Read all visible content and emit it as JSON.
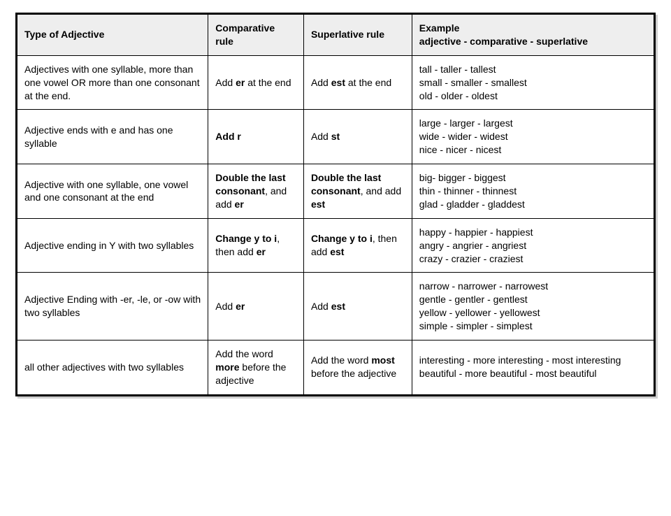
{
  "table": {
    "background_color": "#ffffff",
    "header_bg": "#eeeeee",
    "border_color": "#000000",
    "font_family": "Arial",
    "cell_fontsize": 14,
    "columns": [
      {
        "header_html": "Type of Adjective",
        "width_pct": 30
      },
      {
        "header_html": "Comparative<br>rule",
        "width_pct": 15
      },
      {
        "header_html": "Superlative rule",
        "width_pct": 17
      },
      {
        "header_html": "Example<br>adjective - comparative - superlative",
        "width_pct": 38
      }
    ],
    "rows": [
      {
        "type_html": "Adjectives with one syllable, more than one vowel OR more than one consonant at the end.",
        "comp_html": "Add <b>er</b> at the end",
        "sup_html": "Add <b>est</b> at the end",
        "ex_html": "tall - taller - tallest<br>small - smaller - smallest<br>old - older - oldest"
      },
      {
        "type_html": "Adjective ends with e and has one syllable",
        "comp_html": "<b>Add r</b>",
        "sup_html": "Add <b>st</b>",
        "ex_html": "large - larger - largest<br>wide - wider - widest<br>nice - nicer - nicest"
      },
      {
        "type_html": "Adjective with one syllable, one vowel and one consonant at the end",
        "comp_html": "<b>Double the last consonant</b>, and add <b>er</b>",
        "sup_html": "<b>Double the last consonant</b>, and add <b>est</b>",
        "ex_html": "big- bigger - biggest<br>thin - thinner - thinnest<br>glad - gladder - gladdest"
      },
      {
        "type_html": "Adjective ending in Y with two syllables",
        "comp_html": "<b>Change y to i</b>, then add <b>er</b>",
        "sup_html": "<b>Change y to i</b>, then add <b>est</b>",
        "ex_html": "happy - happier - happiest<br>angry - angrier - angriest<br>crazy - crazier - craziest"
      },
      {
        "type_html": "Adjective Ending with -er, -le, or -ow with two syllables",
        "comp_html": "Add <b>er</b>",
        "sup_html": "Add <b>est</b>",
        "ex_html": "narrow - narrower - narrowest<br>gentle - gentler - gentlest<br>yellow - yellower - yellowest<br>simple - simpler - simplest"
      },
      {
        "type_html": "all other adjectives with two syllables",
        "comp_html": "Add the word <b>more</b> before the adjective",
        "sup_html": "Add the word <b>most</b> before the adjective",
        "ex_html": "interesting - more interesting - most interesting<br>beautiful - more beautiful - most beautiful"
      }
    ]
  }
}
